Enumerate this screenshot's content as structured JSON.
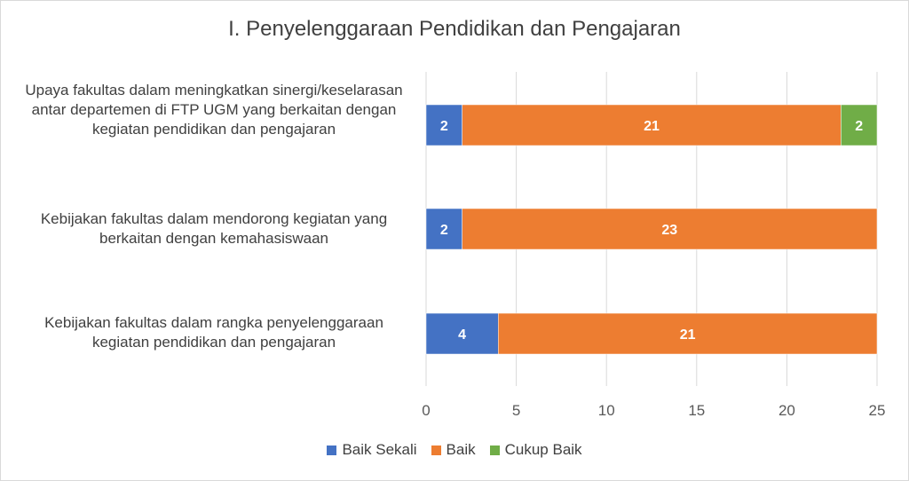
{
  "chart_data": {
    "type": "bar",
    "orientation": "horizontal",
    "stacked": true,
    "title": "I. Penyelenggaraan Pendidikan dan Pengajaran",
    "categories": [
      "Upaya fakultas dalam meningkatkan sinergi/keselarasan antar departemen di FTP UGM yang berkaitan dengan kegiatan pendidikan dan pengajaran",
      "Kebijakan fakultas dalam mendorong kegiatan yang berkaitan dengan kemahasiswaan",
      "Kebijakan fakultas dalam rangka penyelenggaraan kegiatan pendidikan dan pengajaran"
    ],
    "series": [
      {
        "name": "Baik Sekali",
        "color": "#4472c4",
        "values": [
          2,
          2,
          4
        ]
      },
      {
        "name": "Baik",
        "color": "#ed7d31",
        "values": [
          21,
          23,
          21
        ]
      },
      {
        "name": "Cukup Baik",
        "color": "#70ad47",
        "values": [
          2,
          null,
          null
        ]
      }
    ],
    "xlim": [
      0,
      25
    ],
    "xticks": [
      "0",
      "5",
      "10",
      "15",
      "20",
      "25"
    ],
    "grid": true,
    "legend": "bottom",
    "data_labels": true
  }
}
